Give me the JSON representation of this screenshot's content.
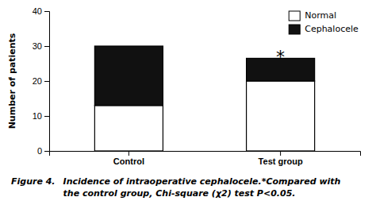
{
  "chart_data": {
    "type": "bar",
    "stacked": true,
    "categories": [
      "Control",
      "Test group"
    ],
    "series": [
      {
        "name": "Normal",
        "color": "#ffffff",
        "values": [
          13,
          20
        ]
      },
      {
        "name": "Cephalocele",
        "color": "#111111",
        "values": [
          17,
          6.5
        ]
      }
    ],
    "y_label": "Number of patients",
    "ylim": [
      0,
      40
    ],
    "yticks": [
      0,
      10,
      20,
      30,
      40
    ],
    "grid": false,
    "legend": "upper right",
    "annotations": [
      {
        "text": "*",
        "x": "Test group",
        "y": 27.5
      }
    ],
    "caption": [
      "Figure 4.",
      "Incidence of intraoperative cephalocele.*Compared with",
      "the control group, Chi-square (χ2) test P<0.05."
    ]
  }
}
